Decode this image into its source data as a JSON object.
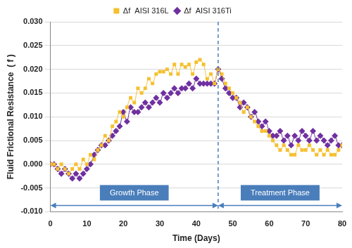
{
  "chart_data": {
    "type": "scatter",
    "xlabel": "Time (Days)",
    "ylabel": "Fluid Frictional Resistance  ( f )",
    "x": [
      0,
      1,
      2,
      3,
      4,
      5,
      6,
      7,
      8,
      9,
      10,
      11,
      12,
      13,
      14,
      15,
      16,
      17,
      18,
      19,
      20,
      21,
      22,
      23,
      24,
      25,
      26,
      27,
      28,
      29,
      30,
      31,
      32,
      33,
      34,
      35,
      36,
      37,
      38,
      39,
      40,
      41,
      42,
      43,
      44,
      45,
      46,
      47,
      48,
      49,
      50,
      51,
      52,
      53,
      54,
      55,
      56,
      57,
      58,
      59,
      60,
      61,
      62,
      63,
      64,
      65,
      66,
      67,
      68,
      69,
      70,
      71,
      72,
      73,
      74,
      75,
      76,
      77,
      78,
      79,
      80
    ],
    "series": [
      {
        "name": "Δf  AISI 316L",
        "color": "#f5c02f",
        "marker": "square",
        "line_style": "solid",
        "values": [
          0,
          0,
          -0.001,
          0,
          -0.001,
          -0.002,
          -0.001,
          0,
          -0.001,
          0.001,
          0,
          0.002,
          0.001,
          0.003,
          0.004,
          0.006,
          0.005,
          0.008,
          0.009,
          0.011,
          0.01,
          0.012,
          0.014,
          0.013,
          0.016,
          0.015,
          0.016,
          0.018,
          0.017,
          0.019,
          0.0195,
          0.0195,
          0.02,
          0.019,
          0.021,
          0.019,
          0.021,
          0.0205,
          0.021,
          0.019,
          0.0215,
          0.022,
          0.021,
          0.018,
          0.019,
          0.017,
          0.02,
          0.019,
          0.017,
          0.016,
          0.015,
          0.014,
          0.013,
          0.011,
          0.012,
          0.01,
          0.009,
          0.008,
          0.007,
          0.007,
          0.006,
          0.005,
          0.004,
          0.003,
          0.004,
          0.003,
          0.002,
          0.002,
          0.004,
          0.003,
          0.003,
          0.004,
          0.003,
          0.002,
          0.003,
          0.002,
          0.003,
          0.002,
          0.002,
          0.003,
          0.004
        ]
      },
      {
        "name": "Δf  AISI 316Ti",
        "color": "#7030a0",
        "marker": "diamond",
        "line_style": "solid",
        "values": [
          0,
          0,
          -0.001,
          -0.002,
          -0.001,
          -0.002,
          -0.003,
          -0.002,
          -0.003,
          -0.002,
          -0.001,
          0,
          0.002,
          0.003,
          0.004,
          0.004,
          0.005,
          0.006,
          0.007,
          0.008,
          0.011,
          0.009,
          0.012,
          0.011,
          0.011,
          0.012,
          0.013,
          0.012,
          0.013,
          0.014,
          0.013,
          0.015,
          0.014,
          0.015,
          0.016,
          0.015,
          0.016,
          0.016,
          0.017,
          0.016,
          0.018,
          0.017,
          0.017,
          0.017,
          0.017,
          0.017,
          0.02,
          0.018,
          0.016,
          0.015,
          0.014,
          0.014,
          0.012,
          0.013,
          0.012,
          0.01,
          0.011,
          0.009,
          0.008,
          0.009,
          0.007,
          0.006,
          0.006,
          0.007,
          0.005,
          0.006,
          0.004,
          0.006,
          0.005,
          0.007,
          0.006,
          0.005,
          0.007,
          0.005,
          0.006,
          0.005,
          0.004,
          0.005,
          0.006,
          0.004,
          0.004
        ]
      }
    ],
    "xlim": [
      0,
      80
    ],
    "xticks": [
      0,
      10,
      20,
      30,
      40,
      50,
      60,
      70,
      80
    ],
    "ylim": [
      -0.01,
      0.03
    ],
    "yticks": [
      {
        "value": -0.01,
        "label": "-0.010"
      },
      {
        "value": -0.005,
        "label": "-0.005"
      },
      {
        "value": 0,
        "label": "0.000"
      },
      {
        "value": 0.005,
        "label": "0.005"
      },
      {
        "value": 0.01,
        "label": "0.010"
      },
      {
        "value": 0.015,
        "label": "0.015"
      },
      {
        "value": 0.02,
        "label": "0.020"
      },
      {
        "value": 0.025,
        "label": "0.025"
      },
      {
        "value": 0.03,
        "label": "0.030"
      }
    ],
    "grid": "y",
    "legend": "top",
    "phases": [
      {
        "label": "Growth Phase",
        "start": 0,
        "end": 46
      },
      {
        "label": "Treatment Phase",
        "start": 46,
        "end": 80
      }
    ]
  }
}
